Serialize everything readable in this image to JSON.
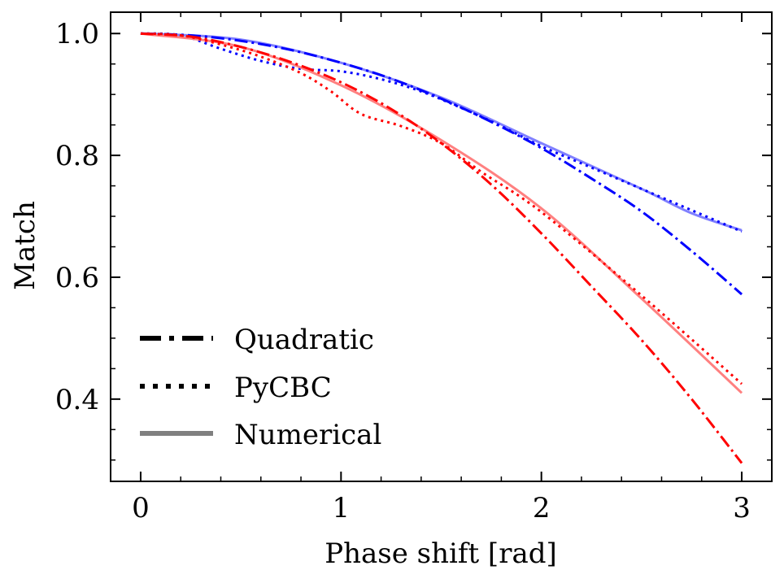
{
  "chart_data": {
    "type": "line",
    "title": "",
    "xlabel": "Phase shift [rad]",
    "ylabel": "Match",
    "xlim": [
      -0.15,
      3.15
    ],
    "ylim": [
      0.265,
      1.035
    ],
    "xticks": [
      {
        "value": 0,
        "label": "0"
      },
      {
        "value": 1,
        "label": "1"
      },
      {
        "value": 2,
        "label": "2"
      },
      {
        "value": 3,
        "label": "3"
      }
    ],
    "yticks": [
      {
        "value": 0.4,
        "label": "0.4"
      },
      {
        "value": 0.6,
        "label": "0.6"
      },
      {
        "value": 0.8,
        "label": "0.8"
      },
      {
        "value": 1.0,
        "label": "1.0"
      }
    ],
    "x_minor_step": 0.2,
    "y_minor_step": 0.05,
    "legend_position": "lower-left",
    "legend": [
      {
        "label": "Quadratic",
        "style": "dashdot",
        "color": "#000000"
      },
      {
        "label": "PyCBC",
        "style": "dotted",
        "color": "#000000"
      },
      {
        "label": "Numerical",
        "style": "solid",
        "color": "#808080"
      }
    ],
    "series": [
      {
        "name": "blue-numerical",
        "group": "blue",
        "style": "solid",
        "color": "#8080ff",
        "x": [
          0,
          0.5,
          1.0,
          1.5,
          2.0,
          2.5,
          2.75,
          3.0
        ],
        "y": [
          1.0,
          0.99,
          0.952,
          0.895,
          0.82,
          0.745,
          0.705,
          0.677
        ]
      },
      {
        "name": "blue-pycbc",
        "group": "blue",
        "style": "dotted",
        "color": "#0000ff",
        "x": [
          0,
          0.2,
          0.4,
          0.6,
          0.8,
          1.0,
          1.2,
          1.4,
          1.6,
          1.8,
          2.0,
          2.25,
          2.5,
          2.75,
          3.0
        ],
        "y": [
          1.0,
          0.997,
          0.975,
          0.955,
          0.942,
          0.938,
          0.925,
          0.905,
          0.878,
          0.848,
          0.815,
          0.78,
          0.745,
          0.71,
          0.675
        ]
      },
      {
        "name": "blue-quadratic",
        "group": "blue",
        "style": "dashdot",
        "color": "#0000ff",
        "x": [
          0,
          0.25,
          0.5,
          0.75,
          1.0,
          1.25,
          1.5,
          1.75,
          2.0,
          2.25,
          2.5,
          2.75,
          3.0
        ],
        "y": [
          1.0,
          0.997,
          0.988,
          0.973,
          0.952,
          0.926,
          0.893,
          0.855,
          0.812,
          0.762,
          0.708,
          0.643,
          0.572
        ]
      },
      {
        "name": "red-numerical",
        "group": "red",
        "style": "solid",
        "color": "#ff8080",
        "x": [
          0,
          0.5,
          1.0,
          1.5,
          2.0,
          2.5,
          3.0
        ],
        "y": [
          1.0,
          0.978,
          0.915,
          0.825,
          0.713,
          0.565,
          0.41
        ]
      },
      {
        "name": "red-pycbc",
        "group": "red",
        "style": "dotted",
        "color": "#ff0000",
        "x": [
          0,
          0.2,
          0.4,
          0.6,
          0.8,
          0.95,
          1.1,
          1.3,
          1.5,
          1.7,
          2.0,
          2.5,
          3.0
        ],
        "y": [
          1.0,
          0.997,
          0.982,
          0.962,
          0.935,
          0.905,
          0.868,
          0.848,
          0.82,
          0.773,
          0.707,
          0.57,
          0.425
        ]
      },
      {
        "name": "red-quadratic",
        "group": "red",
        "style": "dashdot",
        "color": "#ff0000",
        "x": [
          0,
          0.25,
          0.5,
          0.75,
          1.0,
          1.25,
          1.5,
          1.75,
          2.0,
          2.25,
          2.5,
          2.75,
          3.0
        ],
        "y": [
          1.0,
          0.995,
          0.978,
          0.953,
          0.92,
          0.876,
          0.82,
          0.752,
          0.672,
          0.585,
          0.497,
          0.4,
          0.295
        ]
      }
    ]
  }
}
